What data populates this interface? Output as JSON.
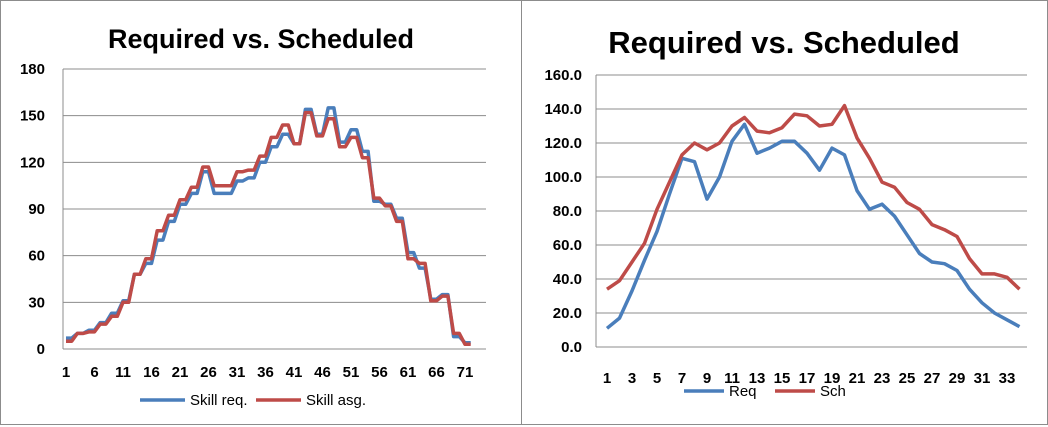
{
  "chart_data": [
    {
      "type": "line",
      "title": "Required vs. Scheduled",
      "xlabel": "",
      "ylabel": "",
      "ylim": [
        0,
        180
      ],
      "yticks": [
        "0",
        "30",
        "60",
        "90",
        "120",
        "150",
        "180"
      ],
      "x_tick_labels": [
        "1",
        "6",
        "11",
        "16",
        "21",
        "26",
        "31",
        "36",
        "41",
        "46",
        "51",
        "56",
        "61",
        "66",
        "71"
      ],
      "grid": true,
      "legend": "bottom",
      "colors": {
        "Skill req.": "#4a7ebb",
        "Skill asg.": "#be4b48"
      },
      "x": [
        1,
        2,
        3,
        4,
        5,
        6,
        7,
        8,
        9,
        10,
        11,
        12,
        13,
        14,
        15,
        16,
        17,
        18,
        19,
        20,
        21,
        22,
        23,
        24,
        25,
        26,
        27,
        28,
        29,
        30,
        31,
        32,
        33,
        34,
        35,
        36,
        37,
        38,
        39,
        40,
        41,
        42,
        43,
        44,
        45,
        46,
        47,
        48,
        49,
        50,
        51,
        52,
        53,
        54,
        55,
        56,
        57,
        58,
        59,
        60,
        61,
        62,
        63,
        64,
        65,
        66,
        67,
        68,
        69,
        70,
        71,
        72
      ],
      "series": [
        {
          "name": "Skill req.",
          "values": [
            7,
            7,
            10,
            10,
            12,
            12,
            17,
            17,
            23,
            23,
            31,
            31,
            48,
            48,
            55,
            55,
            70,
            70,
            82,
            82,
            93,
            93,
            100,
            100,
            114,
            114,
            100,
            100,
            100,
            100,
            108,
            108,
            110,
            110,
            120,
            120,
            130,
            130,
            138,
            138,
            132,
            132,
            154,
            154,
            138,
            138,
            155,
            155,
            133,
            133,
            141,
            141,
            127,
            127,
            95,
            95,
            93,
            93,
            84,
            84,
            62,
            62,
            52,
            52,
            32,
            32,
            35,
            35,
            8,
            8,
            4,
            4
          ]
        },
        {
          "name": "Skill asg.",
          "values": [
            5,
            5,
            10,
            10,
            11,
            11,
            16,
            16,
            21,
            21,
            30,
            30,
            48,
            48,
            58,
            58,
            76,
            76,
            86,
            86,
            96,
            96,
            104,
            104,
            117,
            117,
            105,
            105,
            105,
            105,
            114,
            114,
            115,
            115,
            124,
            124,
            136,
            136,
            144,
            144,
            132,
            132,
            152,
            152,
            137,
            137,
            148,
            148,
            130,
            130,
            136,
            136,
            123,
            123,
            97,
            97,
            92,
            92,
            82,
            82,
            58,
            58,
            55,
            55,
            31,
            31,
            34,
            34,
            10,
            10,
            3,
            3
          ]
        }
      ]
    },
    {
      "type": "line",
      "title": "Required vs. Scheduled",
      "xlabel": "",
      "ylabel": "",
      "ylim": [
        0,
        160
      ],
      "yticks": [
        "0.0",
        "20.0",
        "40.0",
        "60.0",
        "80.0",
        "100.0",
        "120.0",
        "140.0",
        "160.0"
      ],
      "x_tick_labels": [
        "1",
        "3",
        "5",
        "7",
        "9",
        "11",
        "13",
        "15",
        "17",
        "19",
        "21",
        "23",
        "25",
        "27",
        "29",
        "31",
        "33"
      ],
      "grid": true,
      "legend": "bottom",
      "colors": {
        "Req": "#4a7ebb",
        "Sch": "#be4b48"
      },
      "x": [
        1,
        2,
        3,
        4,
        5,
        6,
        7,
        8,
        9,
        10,
        11,
        12,
        13,
        14,
        15,
        16,
        17,
        18,
        19,
        20,
        21,
        22,
        23,
        24,
        25,
        26,
        27,
        28,
        29,
        30,
        31,
        32,
        33,
        34
      ],
      "series": [
        {
          "name": "Req",
          "values": [
            11,
            17,
            33,
            51,
            68,
            90,
            111,
            109,
            87,
            100,
            121,
            131,
            114,
            117,
            121,
            121,
            114,
            104,
            117,
            113,
            92,
            81,
            84,
            77,
            66,
            55,
            50,
            49,
            45,
            34,
            26,
            20,
            16,
            12
          ]
        },
        {
          "name": "Sch",
          "values": [
            34,
            39,
            50,
            61,
            81,
            97,
            113,
            120,
            116,
            120,
            130,
            135,
            127,
            126,
            129,
            137,
            136,
            130,
            131,
            142,
            123,
            111,
            97,
            94,
            85,
            81,
            72,
            69,
            65,
            52,
            43,
            43,
            41,
            34
          ]
        }
      ]
    }
  ]
}
